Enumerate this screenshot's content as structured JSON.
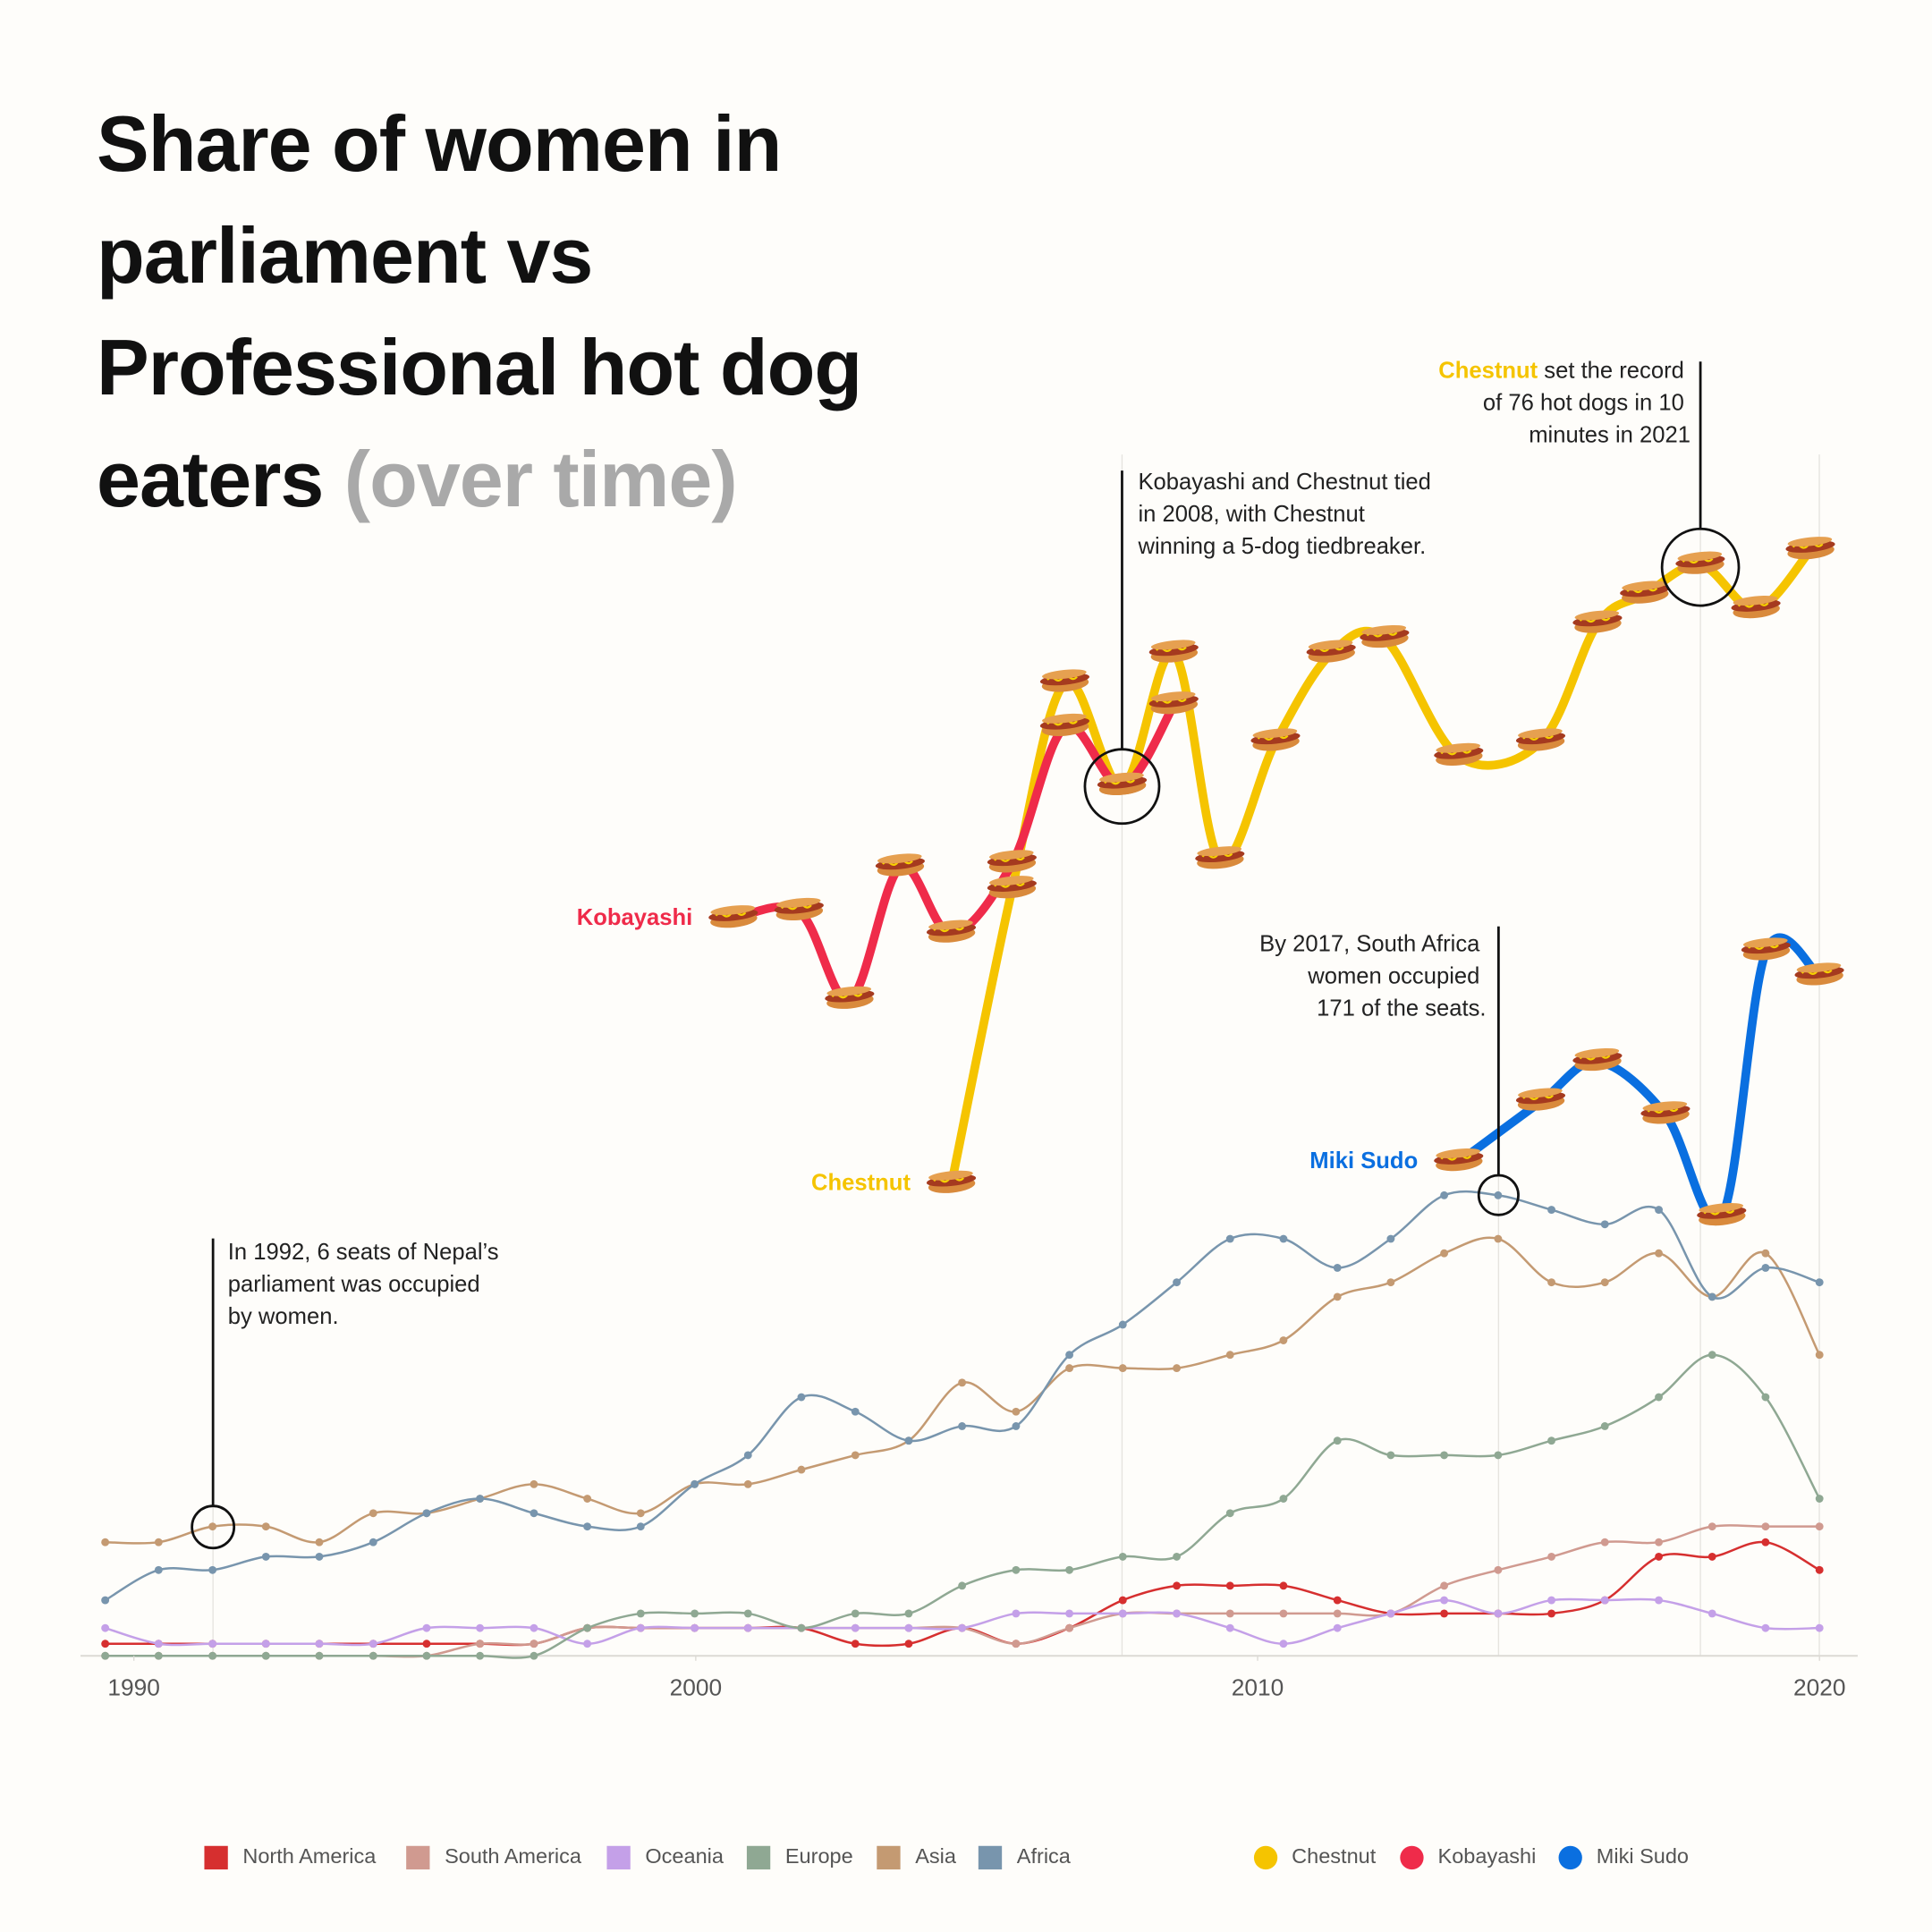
{
  "chart_data": {
    "type": "line",
    "title": "Share of women in parliament vs Professional hot dog eaters",
    "subtitle": "(over time)",
    "xlim": [
      1989.05,
      2020.68
    ],
    "xticks": [
      1990,
      2000,
      2010,
      2020
    ],
    "ylim": [
      0,
      100
    ],
    "y2lim": [
      0,
      82
    ],
    "x": [
      1989.49,
      1990.44,
      1991.4,
      1992.35,
      1993.3,
      1994.26,
      1995.21,
      1996.16,
      1997.12,
      1998.07,
      1999.02,
      1999.98,
      2000.93,
      2001.88,
      2002.84,
      2003.79,
      2004.74,
      2005.7,
      2006.65,
      2007.6,
      2008.56,
      2009.51,
      2010.46,
      2011.42,
      2012.37,
      2013.32,
      2014.28,
      2015.23,
      2016.18,
      2017.14,
      2018.09,
      2019.04,
      2020.0
    ],
    "series": [
      {
        "name": "North America",
        "color": "#d62f2f",
        "values": [
          1.0,
          1.0,
          1.0,
          1.0,
          1.0,
          1.0,
          1.0,
          1.0,
          1.0,
          2.3,
          2.3,
          2.3,
          2.3,
          2.3,
          1.0,
          1.0,
          2.3,
          1.0,
          2.3,
          4.6,
          5.8,
          5.8,
          5.8,
          4.6,
          3.5,
          3.5,
          3.5,
          3.5,
          4.6,
          8.2,
          8.2,
          9.4,
          7.1
        ]
      },
      {
        "name": "South America",
        "color": "#d09a90",
        "values": [
          0,
          0,
          0,
          0,
          0,
          0,
          0,
          1.0,
          1.0,
          2.3,
          2.3,
          2.3,
          2.3,
          2.3,
          2.3,
          2.3,
          2.3,
          1.0,
          2.3,
          3.5,
          3.5,
          3.5,
          3.5,
          3.5,
          3.5,
          5.8,
          7.1,
          8.2,
          9.4,
          9.4,
          10.7,
          10.7,
          10.7
        ]
      },
      {
        "name": "Oceania",
        "color": "#c4a0e8",
        "values": [
          2.3,
          1.0,
          1.0,
          1.0,
          1.0,
          1.0,
          2.3,
          2.3,
          2.3,
          1.0,
          2.3,
          2.3,
          2.3,
          2.3,
          2.3,
          2.3,
          2.3,
          3.5,
          3.5,
          3.5,
          3.5,
          2.3,
          1.0,
          2.3,
          3.5,
          4.6,
          3.5,
          4.6,
          4.6,
          4.6,
          3.5,
          2.3,
          2.3
        ]
      },
      {
        "name": "Europe",
        "color": "#8fa893",
        "values": [
          0,
          0,
          0,
          0,
          0,
          0,
          0,
          0,
          0,
          2.3,
          3.5,
          3.5,
          3.5,
          2.3,
          3.5,
          3.5,
          5.8,
          7.1,
          7.1,
          8.2,
          8.2,
          11.8,
          13.0,
          17.8,
          16.6,
          16.6,
          16.6,
          17.8,
          19.0,
          21.4,
          24.9,
          21.4,
          13.0
        ]
      },
      {
        "name": "Asia",
        "color": "#c49a72",
        "values": [
          9.4,
          9.4,
          10.7,
          10.7,
          9.4,
          11.8,
          11.8,
          13.0,
          14.2,
          13.0,
          11.8,
          14.2,
          14.2,
          15.4,
          16.6,
          17.8,
          22.6,
          20.2,
          23.8,
          23.8,
          23.8,
          24.9,
          26.1,
          29.7,
          30.9,
          33.3,
          34.5,
          30.9,
          30.9,
          33.3,
          29.7,
          33.3,
          24.9
        ]
      },
      {
        "name": "Africa",
        "color": "#7895ad",
        "values": [
          4.6,
          7.1,
          7.1,
          8.2,
          8.2,
          9.4,
          11.8,
          13.0,
          11.8,
          10.7,
          10.7,
          14.2,
          16.6,
          21.4,
          20.2,
          17.8,
          19.0,
          19.0,
          24.9,
          27.4,
          30.9,
          34.5,
          34.5,
          32.1,
          34.5,
          38.1,
          38.1,
          36.9,
          35.7,
          36.9,
          29.7,
          32.1,
          30.9
        ]
      },
      {
        "name": "Chestnut",
        "color": "#f5c400",
        "axis": "y2",
        "x": [
          2004.55,
          2005.63,
          2006.57,
          2007.59,
          2008.51,
          2009.33,
          2010.32,
          2011.31,
          2012.26,
          2013.58,
          2015.04,
          2016.05,
          2016.89,
          2017.88,
          2018.87,
          2019.84
        ],
        "values": [
          32,
          52,
          66,
          59,
          68,
          54,
          62,
          68,
          69,
          61,
          62,
          70,
          72,
          74,
          71,
          75
        ]
      },
      {
        "name": "Kobayashi",
        "color": "#ef2b4a",
        "axis": "y2",
        "x": [
          2000.67,
          2001.84,
          2002.74,
          2003.64,
          2004.55,
          2005.63,
          2006.57,
          2007.59,
          2008.51
        ],
        "values": [
          50,
          50.5,
          44.5,
          53.5,
          49,
          53.75,
          63,
          59,
          64.5
        ]
      },
      {
        "name": "Miki Sudo",
        "color": "#0a6fe0",
        "axis": "y2",
        "x": [
          2013.58,
          2015.04,
          2016.05,
          2017.26,
          2018.26,
          2019.05,
          2020.0
        ],
        "values": [
          33.5,
          37.6,
          40.3,
          36.7,
          29.8,
          47.8,
          46.1
        ]
      }
    ],
    "annotations": [
      {
        "lines": [
          "In 1992, 6 seats of Nepal’s",
          "parliament was occupied",
          "by women."
        ]
      },
      {
        "lines": [
          "Kobayashi and Chestnut tied",
          "in 2008, with Chestnut",
          "winning a 5-dog tiedbreaker."
        ]
      },
      {
        "lines": [
          "By 2017, South Africa",
          "women occupied",
          "171 of the seats."
        ]
      },
      {
        "lines": [
          "Chestnut",
          " set the record",
          "of 76 hot dogs in 10",
          "minutes in 2021"
        ]
      }
    ]
  }
}
